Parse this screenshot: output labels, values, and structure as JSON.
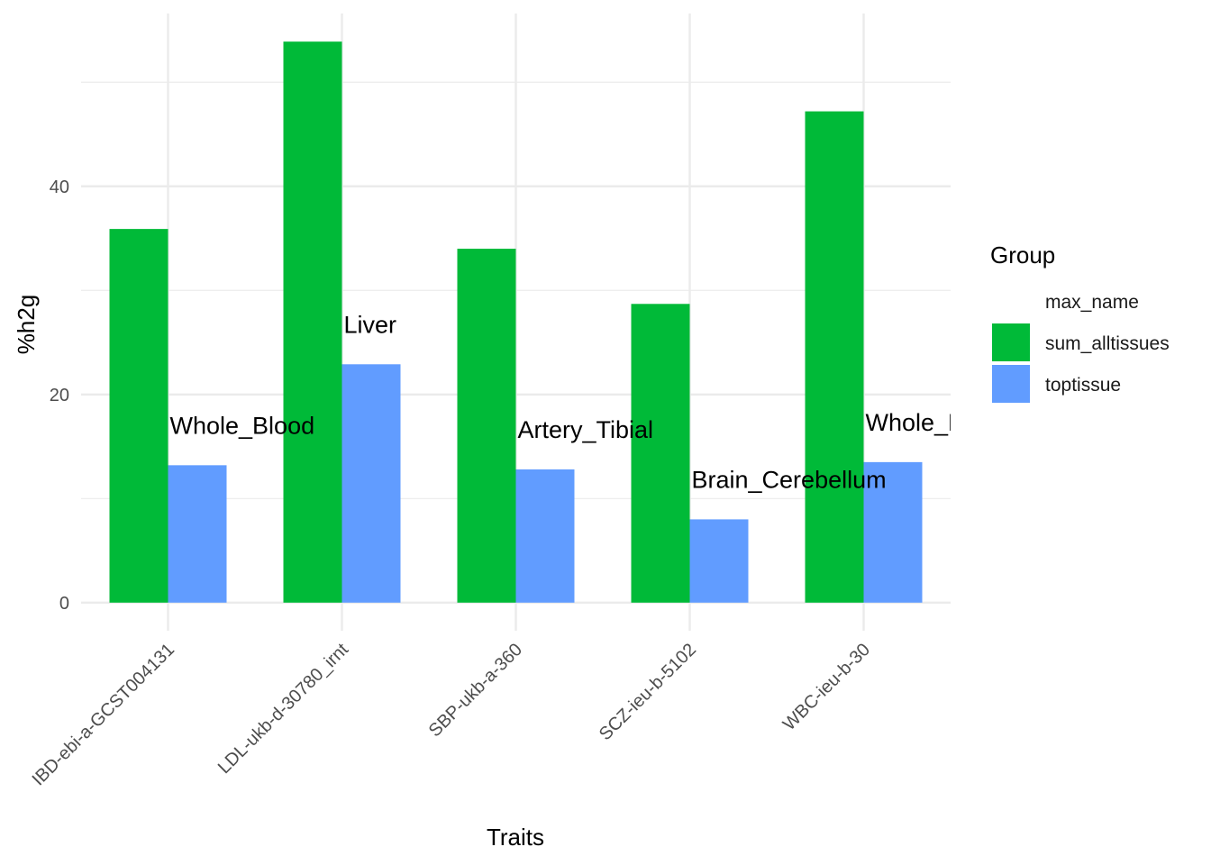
{
  "chart_data": {
    "type": "bar",
    "categories": [
      "IBD-ebi-a-GCST004131",
      "LDL-ukb-d-30780_irnt",
      "SBP-ukb-a-360",
      "SCZ-ieu-b-5102",
      "WBC-ieu-b-30"
    ],
    "series": [
      {
        "name": "sum_alltissues",
        "values": [
          35.9,
          53.9,
          34.0,
          28.7,
          47.2
        ],
        "color": "#00BA38"
      },
      {
        "name": "toptissue",
        "values": [
          13.2,
          22.9,
          12.8,
          8.0,
          13.5
        ],
        "color": "#619CFF"
      }
    ],
    "bar_labels": [
      "Whole_Blood",
      "Liver",
      "Artery_Tibial",
      "Brain_Cerebellum",
      "Whole_Blood"
    ],
    "xlabel": "Traits",
    "ylabel": "%h2g",
    "ylim": [
      -2.7,
      56.6
    ],
    "yticks": [
      0,
      20,
      40
    ],
    "grid": true,
    "legend": {
      "title": "Group",
      "position": "right",
      "entries": [
        "max_name",
        "sum_alltissues",
        "toptissue"
      ]
    }
  }
}
